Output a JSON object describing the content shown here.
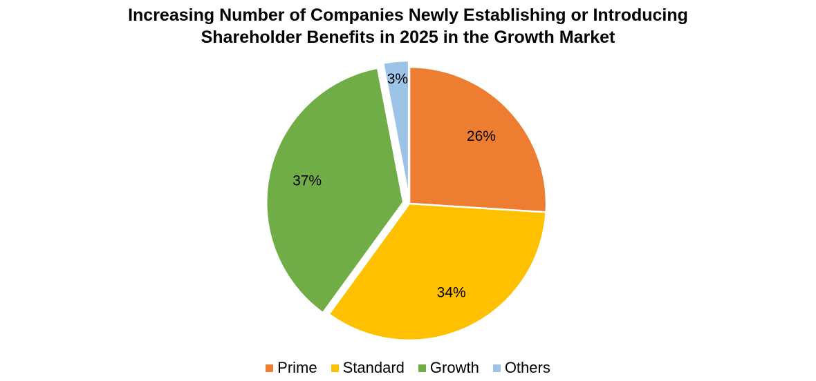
{
  "chart_data": {
    "type": "pie",
    "title": "Increasing Number of Companies Newly Establishing or Introducing Shareholder Benefits in 2025 in the Growth Market",
    "title_lines": [
      "Increasing Number of Companies Newly Establishing or Introducing",
      "Shareholder Benefits in 2025 in the Growth Market"
    ],
    "categories": [
      "Prime",
      "Standard",
      "Growth",
      "Others"
    ],
    "values": [
      26,
      34,
      37,
      3
    ],
    "labels": [
      "26%",
      "34%",
      "37%",
      "3%"
    ],
    "colors": [
      "#ED7D31",
      "#FFC000",
      "#70AD47",
      "#9DC3E6"
    ],
    "exploded": [
      false,
      false,
      true,
      true
    ],
    "legend_position": "bottom"
  }
}
